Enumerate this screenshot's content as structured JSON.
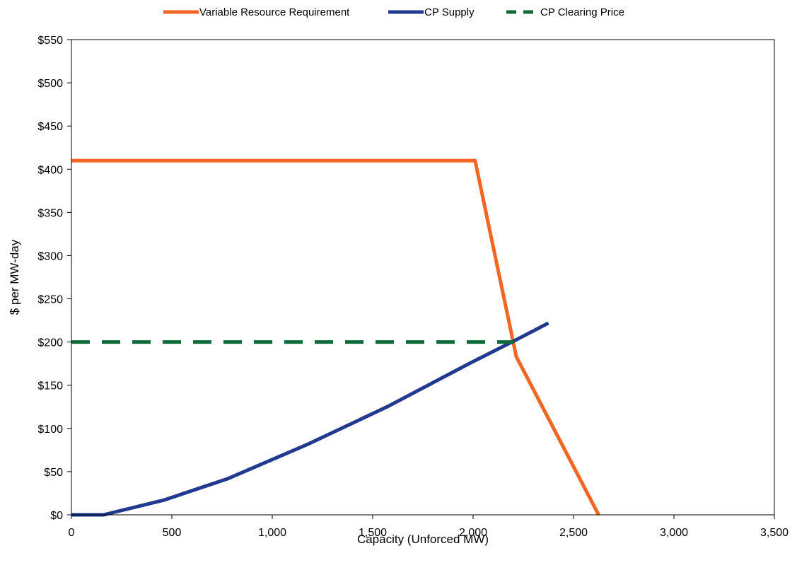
{
  "chart_data": {
    "type": "line",
    "xlabel": "Capacity (Unforced MW)",
    "ylabel": "$ per MW-day",
    "xlim": [
      0,
      3500
    ],
    "ylim": [
      0,
      550
    ],
    "x_ticks": [
      0,
      500,
      1000,
      1500,
      2000,
      2500,
      3000,
      3500
    ],
    "x_tick_labels": [
      "0",
      "500",
      "1,000",
      "1,500",
      "2,000",
      "2,500",
      "3,000",
      "3,500"
    ],
    "y_ticks": [
      0,
      50,
      100,
      150,
      200,
      250,
      300,
      350,
      400,
      450,
      500,
      550
    ],
    "y_tick_labels": [
      "$0",
      "$50",
      "$100",
      "$150",
      "$200",
      "$250",
      "$300",
      "$350",
      "$400",
      "$450",
      "$500",
      "$550"
    ],
    "grid": false,
    "legend_position": "top",
    "series": [
      {
        "name": "Variable Resource Requirement",
        "color": "#F26522",
        "style": "solid",
        "points": [
          [
            0,
            410
          ],
          [
            2010,
            410
          ],
          [
            2215,
            183
          ],
          [
            2625,
            0
          ]
        ]
      },
      {
        "name": "CP Supply",
        "color": "#1F3A8F",
        "style": "solid",
        "points": [
          [
            0,
            0
          ],
          [
            160,
            0
          ],
          [
            460,
            17
          ],
          [
            780,
            42
          ],
          [
            1180,
            82
          ],
          [
            1580,
            126
          ],
          [
            1980,
            175
          ],
          [
            2210,
            202
          ],
          [
            2375,
            222
          ]
        ]
      },
      {
        "name": "CP Clearing Price",
        "color": "#0F6B3A",
        "style": "dashed",
        "points": [
          [
            0,
            200
          ],
          [
            2200,
            200
          ]
        ]
      }
    ]
  }
}
